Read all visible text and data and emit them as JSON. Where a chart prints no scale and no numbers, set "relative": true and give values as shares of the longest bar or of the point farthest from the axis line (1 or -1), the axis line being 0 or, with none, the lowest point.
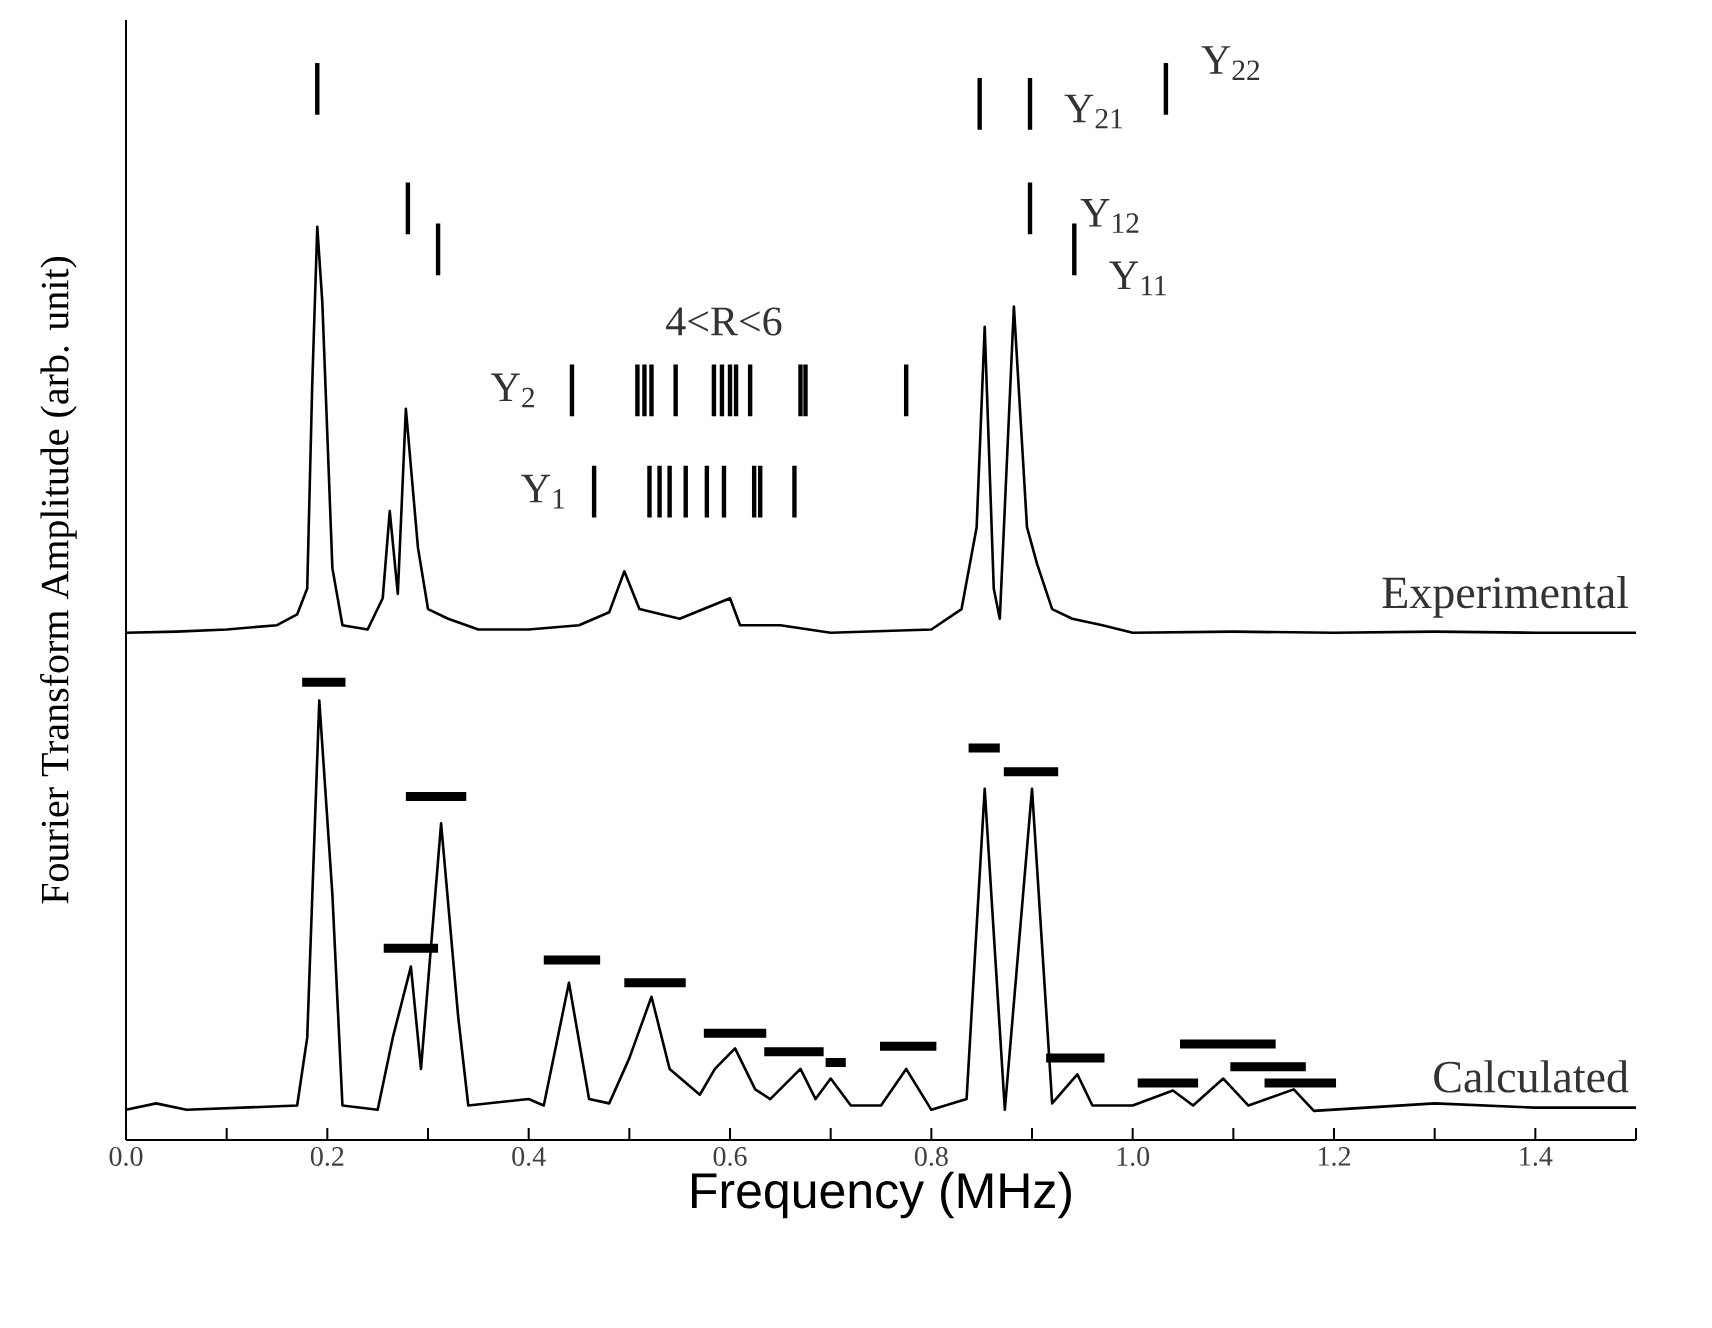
{
  "chart_data": {
    "type": "line",
    "relative": true,
    "xlabel": "Frequency (MHz)",
    "ylabel": "Fourier Transform Amplitude (arb. unit)",
    "xlim": [
      0,
      1.5
    ],
    "xticks": [
      {
        "value": 0,
        "label": "0.0"
      },
      {
        "value": 0.1,
        "label": null
      },
      {
        "value": 0.2,
        "label": "0.2"
      },
      {
        "value": 0.3,
        "label": null
      },
      {
        "value": 0.4,
        "label": "0.4"
      },
      {
        "value": 0.5,
        "label": null
      },
      {
        "value": 0.6,
        "label": "0.6"
      },
      {
        "value": 0.7,
        "label": null
      },
      {
        "value": 0.8,
        "label": "0.8"
      },
      {
        "value": 0.9,
        "label": null
      },
      {
        "value": 1.0,
        "label": "1.0"
      },
      {
        "value": 1.1,
        "label": null
      },
      {
        "value": 1.2,
        "label": "1.2"
      },
      {
        "value": 1.3,
        "label": null
      },
      {
        "value": 1.4,
        "label": "1.4"
      },
      {
        "value": 1.5,
        "label": null
      }
    ],
    "series": [
      {
        "name": "Experimental",
        "color": "#000000",
        "x": [
          0,
          0.05,
          0.1,
          0.15,
          0.17,
          0.18,
          0.185,
          0.19,
          0.195,
          0.205,
          0.215,
          0.24,
          0.255,
          0.262,
          0.27,
          0.278,
          0.29,
          0.3,
          0.32,
          0.35,
          0.4,
          0.45,
          0.48,
          0.495,
          0.51,
          0.55,
          0.6,
          0.61,
          0.65,
          0.7,
          0.8,
          0.83,
          0.845,
          0.853,
          0.862,
          0.868,
          0.882,
          0.895,
          0.905,
          0.92,
          0.94,
          0.97,
          1.0,
          1.1,
          1.2,
          1.3,
          1.4,
          1.5
        ],
        "values": [
          0.471,
          0.472,
          0.474,
          0.478,
          0.488,
          0.512,
          0.702,
          0.848,
          0.778,
          0.531,
          0.478,
          0.474,
          0.503,
          0.584,
          0.507,
          0.679,
          0.55,
          0.493,
          0.484,
          0.474,
          0.474,
          0.478,
          0.49,
          0.528,
          0.493,
          0.484,
          0.503,
          0.478,
          0.478,
          0.471,
          0.474,
          0.493,
          0.569,
          0.755,
          0.512,
          0.484,
          0.774,
          0.569,
          0.535,
          0.493,
          0.484,
          0.478,
          0.471,
          0.472,
          0.471,
          0.472,
          0.471,
          0.471
        ]
      },
      {
        "name": "Calculated",
        "color": "#000000",
        "x": [
          0,
          0.03,
          0.06,
          0.17,
          0.18,
          0.192,
          0.205,
          0.215,
          0.25,
          0.265,
          0.283,
          0.293,
          0.313,
          0.33,
          0.34,
          0.4,
          0.415,
          0.44,
          0.46,
          0.48,
          0.5,
          0.522,
          0.54,
          0.57,
          0.585,
          0.605,
          0.625,
          0.64,
          0.67,
          0.685,
          0.7,
          0.72,
          0.75,
          0.775,
          0.8,
          0.835,
          0.853,
          0.873,
          0.9,
          0.92,
          0.945,
          0.96,
          1.0,
          1.04,
          1.06,
          1.09,
          1.115,
          1.16,
          1.18,
          1.3,
          1.4,
          1.5
        ],
        "values": [
          0.028,
          0.034,
          0.028,
          0.032,
          0.095,
          0.408,
          0.228,
          0.032,
          0.028,
          0.095,
          0.161,
          0.066,
          0.294,
          0.114,
          0.032,
          0.038,
          0.032,
          0.146,
          0.038,
          0.034,
          0.076,
          0.133,
          0.066,
          0.042,
          0.066,
          0.085,
          0.047,
          0.038,
          0.066,
          0.038,
          0.057,
          0.032,
          0.032,
          0.066,
          0.028,
          0.038,
          0.326,
          0.028,
          0.326,
          0.034,
          0.061,
          0.032,
          0.032,
          0.046,
          0.032,
          0.057,
          0.032,
          0.047,
          0.027,
          0.034,
          0.03,
          0.03
        ]
      },
      {
        "color": "#000000",
        "x": [
          0.175,
          0.218,
          null,
          0.278,
          0.338,
          null,
          0.256,
          0.31,
          null,
          0.415,
          0.471,
          null,
          0.495,
          0.556,
          null,
          0.574,
          0.636,
          null,
          0.634,
          0.693,
          null,
          0.695,
          0.715,
          null,
          0.749,
          0.805,
          null,
          0.837,
          0.868,
          null,
          0.872,
          0.926,
          null,
          0.914,
          0.972,
          null,
          1.005,
          1.065,
          null,
          1.047,
          1.142,
          null,
          1.097,
          1.172,
          null,
          1.131,
          1.202
        ],
        "values": [
          0.425,
          0.425,
          null,
          0.319,
          0.319,
          null,
          0.178,
          0.178,
          null,
          0.167,
          0.167,
          null,
          0.146,
          0.146,
          null,
          0.099,
          0.099,
          null,
          0.082,
          0.082,
          null,
          0.072,
          0.072,
          null,
          0.087,
          0.087,
          null,
          0.364,
          0.364,
          null,
          0.342,
          0.342,
          null,
          0.076,
          0.076,
          null,
          0.053,
          0.053,
          null,
          0.089,
          0.089,
          null,
          0.068,
          0.068,
          null,
          0.053,
          0.053
        ]
      },
      {
        "color": "#000000",
        "x": [
          0.19,
          0.19,
          null,
          1.033,
          1.033
        ],
        "values": [
          0.952,
          1.0,
          null,
          0.952,
          1.0
        ]
      },
      {
        "color": "#000000",
        "x": [
          0.848,
          0.848,
          null,
          0.898,
          0.898
        ],
        "values": [
          0.938,
          0.986,
          null,
          0.938,
          0.986
        ]
      },
      {
        "color": "#000000",
        "x": [
          0.28,
          0.28,
          null,
          0.898,
          0.898
        ],
        "values": [
          0.841,
          0.889,
          null,
          0.841,
          0.889
        ]
      },
      {
        "color": "#000000",
        "x": [
          0.31,
          0.31,
          null,
          0.942,
          0.942
        ],
        "values": [
          0.803,
          0.851,
          null,
          0.803,
          0.851
        ]
      },
      {
        "color": "#000000",
        "x": [
          0.443,
          0.443,
          null,
          0.508,
          0.508,
          null,
          0.515,
          0.515,
          null,
          0.522,
          0.522,
          null,
          0.546,
          0.546,
          null,
          0.584,
          0.584,
          null,
          0.592,
          0.592,
          null,
          0.6,
          0.6,
          null,
          0.606,
          0.606,
          null,
          0.62,
          0.62,
          null,
          0.67,
          0.67,
          null,
          0.675,
          0.675,
          null,
          0.775,
          0.775
        ],
        "values": [
          0.672,
          0.72,
          null,
          0.672,
          0.72,
          null,
          0.672,
          0.72,
          null,
          0.672,
          0.72,
          null,
          0.672,
          0.72,
          null,
          0.672,
          0.72,
          null,
          0.672,
          0.72,
          null,
          0.672,
          0.72,
          null,
          0.672,
          0.72,
          null,
          0.672,
          0.72,
          null,
          0.672,
          0.72,
          null,
          0.672,
          0.72,
          null,
          0.672,
          0.72
        ]
      },
      {
        "color": "#000000",
        "x": [
          0.465,
          0.465,
          null,
          0.52,
          0.52,
          null,
          0.53,
          0.53,
          null,
          0.54,
          0.54,
          null,
          0.556,
          0.556,
          null,
          0.577,
          0.577,
          null,
          0.594,
          0.594,
          null,
          0.624,
          0.624,
          null,
          0.63,
          0.63,
          null,
          0.664,
          0.664
        ],
        "values": [
          0.578,
          0.626,
          null,
          0.578,
          0.626,
          null,
          0.578,
          0.626,
          null,
          0.578,
          0.626,
          null,
          0.578,
          0.626,
          null,
          0.578,
          0.626,
          null,
          0.578,
          0.626,
          null,
          0.578,
          0.626,
          null,
          0.578,
          0.626,
          null,
          0.578,
          0.626
        ]
      }
    ],
    "annotations": [
      "4<R<6",
      "Y$_{2}$",
      "Y$_{1}$",
      "Y$_{21}$",
      "Y$_{22}$",
      "Y$_{12}$",
      "Y$_{11}$"
    ]
  }
}
